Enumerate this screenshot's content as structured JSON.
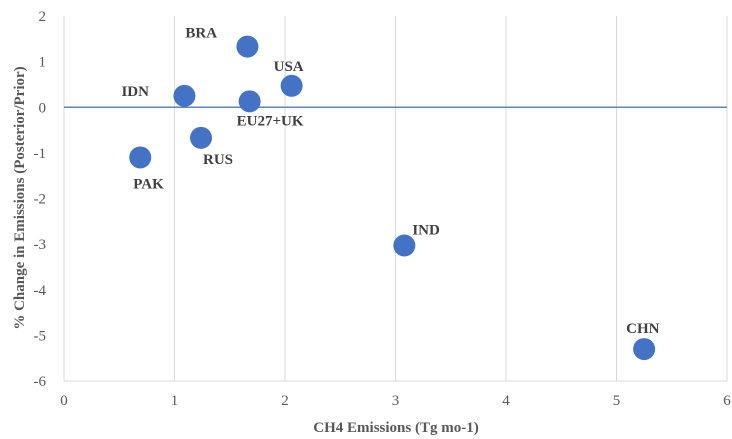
{
  "colors": {
    "marker": "#4472c4",
    "zero_line": "#5b87b5",
    "grid": "#d9d9d9",
    "text": "#595959"
  },
  "chart_data": {
    "type": "scatter",
    "title": "",
    "xlabel": "CH4 Emissions (Tg mo-1)",
    "ylabel": "% Change in Emissions (Posterior/Prior)",
    "xlim": [
      0,
      6
    ],
    "ylim": [
      -6,
      2
    ],
    "xticks": [
      0,
      1,
      2,
      3,
      4,
      5,
      6
    ],
    "yticks": [
      2,
      1,
      0,
      -1,
      -2,
      -3,
      -4,
      -5,
      -6
    ],
    "grid": "vertical",
    "legend": "none",
    "points": [
      {
        "label": "BRA",
        "x": 1.66,
        "y": 1.33
      },
      {
        "label": "USA",
        "x": 2.06,
        "y": 0.47
      },
      {
        "label": "IDN",
        "x": 1.09,
        "y": 0.25
      },
      {
        "label": "EU27+UK",
        "x": 1.68,
        "y": 0.13
      },
      {
        "label": "RUS",
        "x": 1.24,
        "y": -0.67
      },
      {
        "label": "PAK",
        "x": 0.69,
        "y": -1.1
      },
      {
        "label": "IND",
        "x": 3.08,
        "y": -3.03
      },
      {
        "label": "CHN",
        "x": 5.25,
        "y": -5.3
      }
    ]
  }
}
